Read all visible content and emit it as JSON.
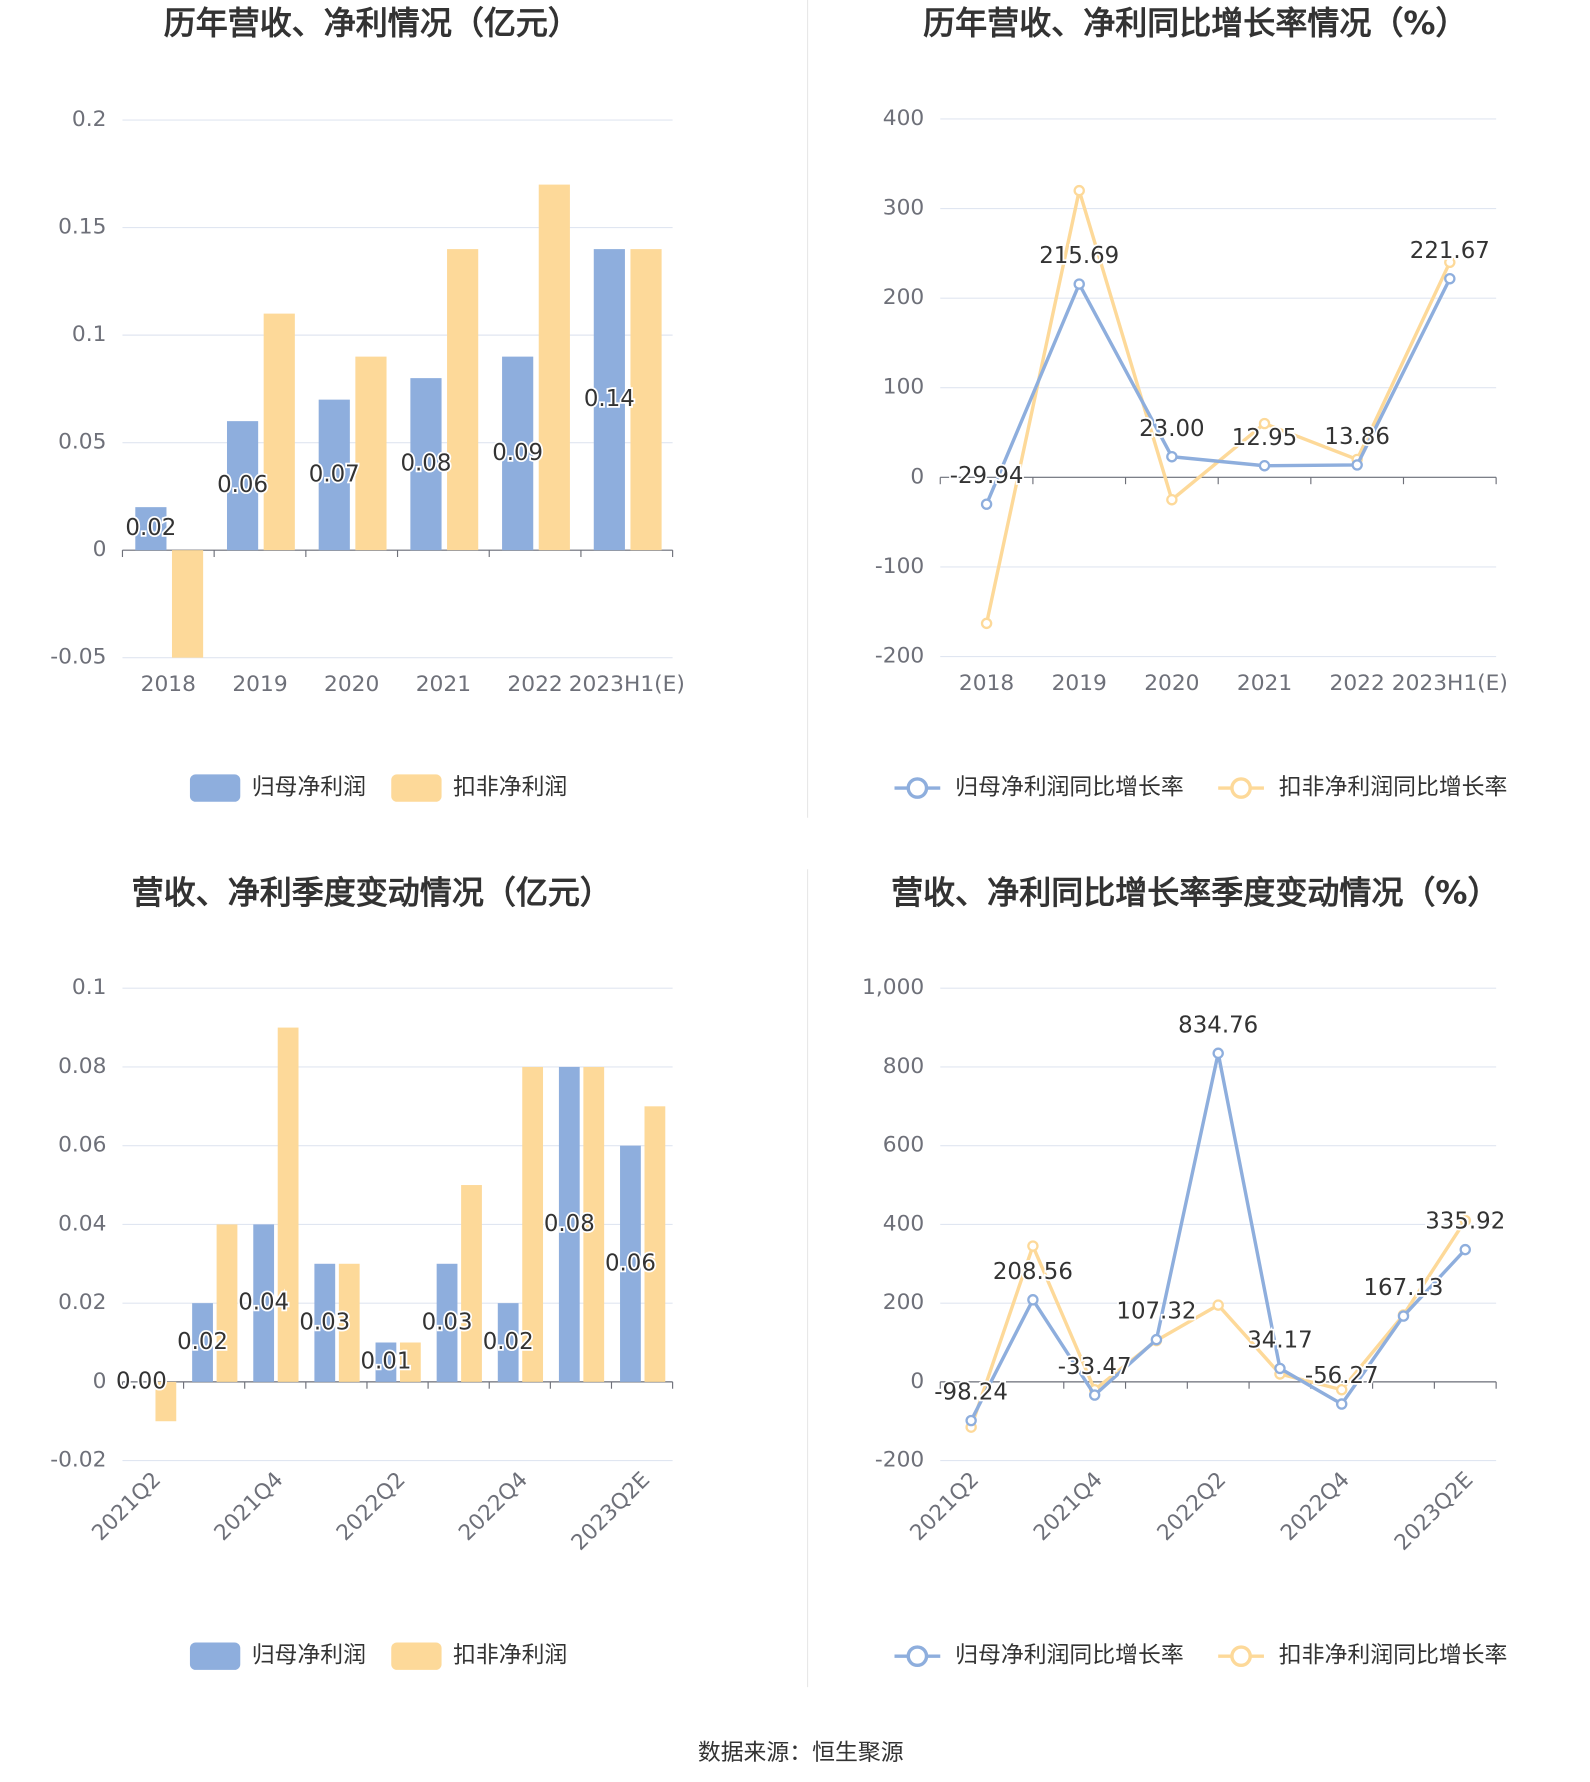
{
  "chart_data": [
    {
      "type": "bar",
      "title": "历年营收、净利情况（亿元）",
      "categories": [
        "2018",
        "2019",
        "2020",
        "2021",
        "2022",
        "2023H1(E)"
      ],
      "series": [
        {
          "name": "归母净利润",
          "color": "#8eaedd",
          "values": [
            0.02,
            0.06,
            0.07,
            0.08,
            0.09,
            0.14
          ]
        },
        {
          "name": "扣非净利润",
          "color": "#fdd999",
          "values": [
            -0.05,
            0.11,
            0.09,
            0.14,
            0.17,
            0.14
          ]
        }
      ],
      "ylim": [
        -0.05,
        0.2
      ],
      "yticks": [
        -0.05,
        0,
        0.05,
        0.1,
        0.15,
        0.2
      ],
      "grid": true
    },
    {
      "type": "line",
      "title": "历年营收、净利同比增长率情况（%）",
      "categories": [
        "2018",
        "2019",
        "2020",
        "2021",
        "2022",
        "2023H1(E)"
      ],
      "series": [
        {
          "name": "归母净利润同比增长率",
          "color": "#8eaedd",
          "values": [
            -29.94,
            215.69,
            23.0,
            12.95,
            13.86,
            221.67
          ],
          "value_labels": [
            "-29.94",
            "215.69",
            "23.00",
            "12.95",
            "13.86",
            "221.67"
          ]
        },
        {
          "name": "扣非净利润同比增长率",
          "color": "#fdd999",
          "values": [
            -163,
            320,
            -25,
            60,
            20,
            240
          ]
        }
      ],
      "ylim": [
        -200,
        400
      ],
      "yticks": [
        -200,
        -100,
        0,
        100,
        200,
        300,
        400
      ],
      "grid": true
    },
    {
      "type": "bar",
      "title": "营收、净利季度变动情况（亿元）",
      "categories": [
        "2021Q2",
        null,
        "2021Q4",
        null,
        "2022Q2",
        null,
        "2022Q4",
        null,
        "2023Q2E"
      ],
      "series": [
        {
          "name": "归母净利润",
          "color": "#8eaedd",
          "values": [
            0.0,
            0.02,
            0.04,
            0.03,
            0.01,
            0.03,
            0.02,
            0.08,
            0.06
          ],
          "value_labels": [
            "0.00",
            "0.02",
            "0.04",
            "0.03",
            "0.01",
            "0.03",
            "0.02",
            "0.08",
            "0.06"
          ]
        },
        {
          "name": "扣非净利润",
          "color": "#fdd999",
          "values": [
            -0.01,
            0.04,
            0.09,
            0.03,
            0.01,
            0.05,
            0.08,
            0.08,
            0.07
          ]
        }
      ],
      "ylim": [
        -0.02,
        0.1
      ],
      "yticks": [
        -0.02,
        0,
        0.02,
        0.04,
        0.06,
        0.08,
        0.1
      ],
      "grid": true
    },
    {
      "type": "line",
      "title": "营收、净利同比增长率季度变动情况（%）",
      "categories": [
        "2021Q2",
        null,
        "2021Q4",
        null,
        "2022Q2",
        null,
        "2022Q4",
        null,
        "2023Q2E"
      ],
      "series": [
        {
          "name": "归母净利润同比增长率",
          "color": "#8eaedd",
          "values": [
            -98.24,
            208.56,
            -33.47,
            107.32,
            834.76,
            34.17,
            -56.27,
            167.13,
            335.92
          ]
        },
        {
          "name": "扣非净利润同比增长率",
          "color": "#fdd999",
          "values": [
            -115,
            345,
            -20,
            105,
            195,
            20,
            -20,
            170,
            410
          ]
        }
      ],
      "ylim": [
        -200,
        1000
      ],
      "yticks": [
        -200,
        0,
        200,
        400,
        600,
        800,
        {
          "value": 1000,
          "label": "1,000"
        }
      ],
      "grid": true
    }
  ],
  "source": "数据来源：恒生聚源"
}
